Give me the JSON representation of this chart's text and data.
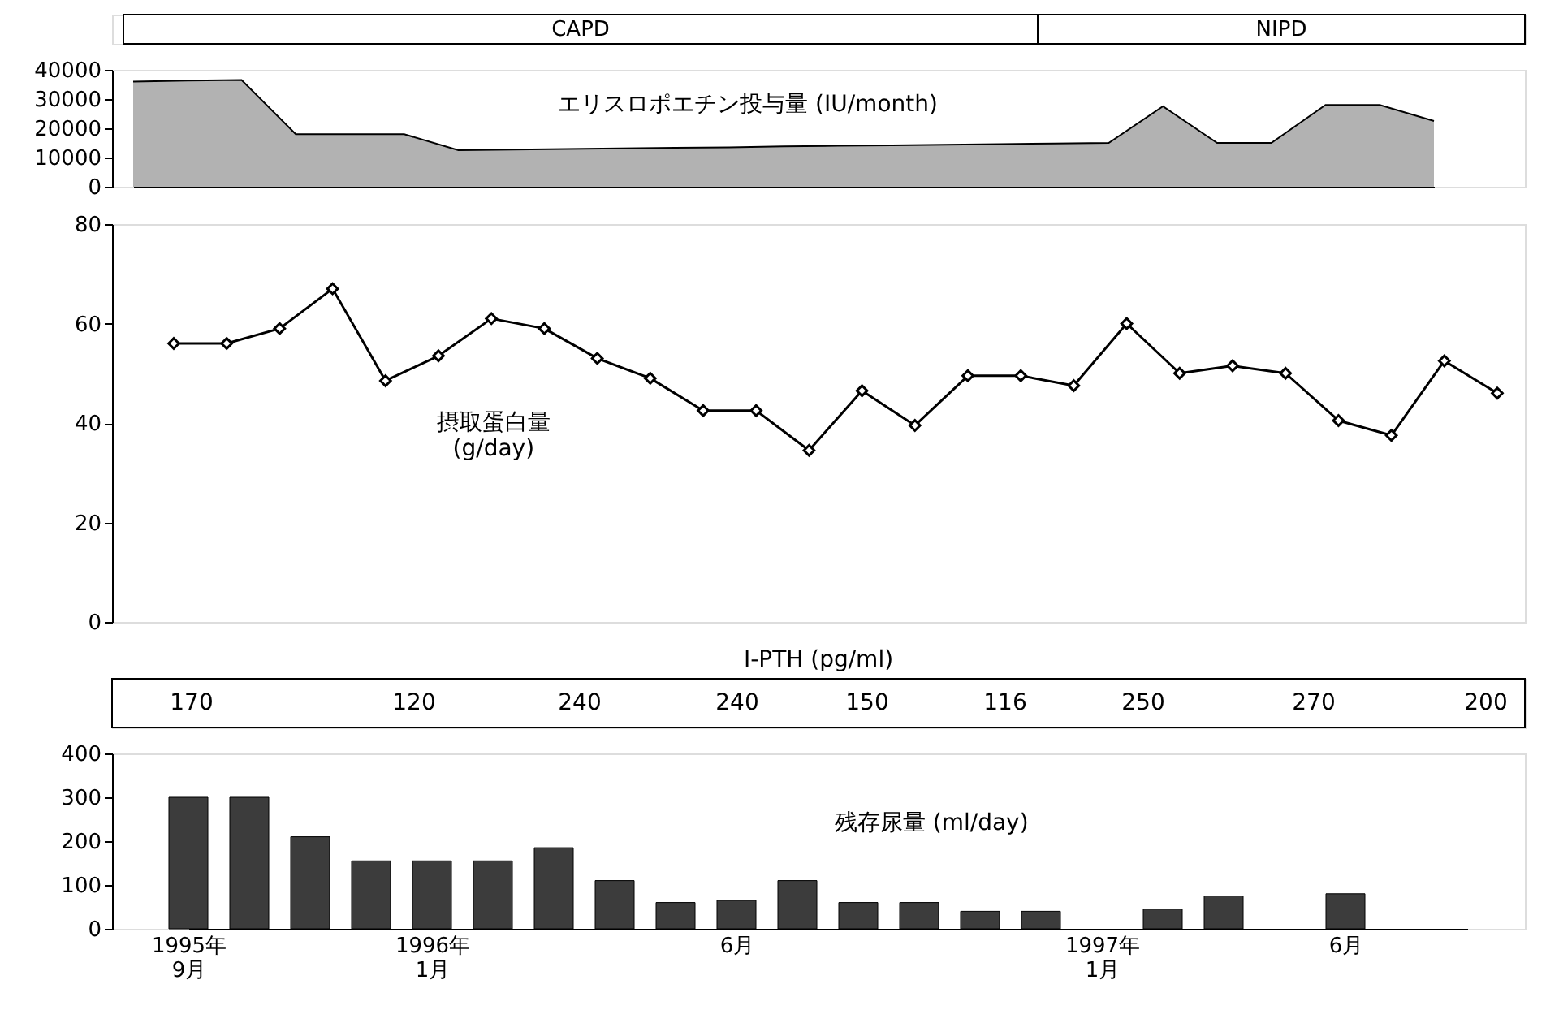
{
  "chart_data": [
    {
      "type": "other",
      "annotations": [
        "CAPD",
        "NIPD"
      ]
    },
    {
      "type": "area",
      "categories": [
        null,
        null,
        null,
        null,
        null,
        null,
        null,
        null,
        null,
        null,
        null,
        null,
        null,
        null,
        null,
        null,
        null,
        null,
        null,
        null,
        null,
        null,
        null,
        null,
        null
      ],
      "values": [
        36000,
        36300,
        36500,
        18000,
        18000,
        18000,
        12500,
        12700,
        12900,
        13100,
        13300,
        13500,
        13800,
        14000,
        14200,
        14400,
        14600,
        14800,
        15000,
        27500,
        15000,
        15000,
        28000,
        28000,
        22500
      ],
      "color": "#555555",
      "ylim": [
        0,
        40000
      ],
      "yticks": [
        0,
        10000,
        20000,
        30000,
        40000
      ],
      "tick_labels": "y",
      "annotations": [
        "エリスロポエチン投与量 (IU/month)"
      ]
    },
    {
      "type": "line",
      "categories": [
        null,
        null,
        null,
        null,
        null,
        null,
        null,
        null,
        null,
        null,
        null,
        null,
        null,
        null,
        null,
        null,
        null,
        null,
        null,
        null,
        null,
        null,
        null,
        null,
        null,
        null
      ],
      "values": [
        56,
        56,
        59,
        67,
        48.5,
        53.5,
        61,
        59,
        53,
        49,
        42.5,
        42.5,
        34.5,
        46.5,
        39.5,
        49.5,
        49.5,
        47.5,
        60,
        50,
        51.5,
        50,
        40.5,
        37.5,
        52.5,
        46
      ],
      "color": "#000000",
      "marker": "diamond",
      "line_style": "solid",
      "ylim": [
        0,
        80
      ],
      "yticks": [
        0,
        20,
        40,
        60,
        80
      ],
      "tick_labels": "y",
      "annotations": [
        "摂取蛋白量\n(g/day)"
      ]
    },
    {
      "type": "other",
      "title": "I-PTH (pg/ml)",
      "annotations": [
        "170",
        "120",
        "240",
        "240",
        "150",
        "116",
        "250",
        "270",
        "200"
      ]
    },
    {
      "type": "bar",
      "categories": [
        "1995年\n9月",
        null,
        null,
        null,
        "1996年\n1月",
        null,
        null,
        null,
        null,
        "6月",
        null,
        null,
        null,
        null,
        null,
        "1997年\n1月",
        null,
        null,
        null,
        "6月",
        null,
        null
      ],
      "values": [
        300,
        300,
        210,
        155,
        155,
        155,
        185,
        110,
        60,
        65,
        110,
        60,
        60,
        40,
        40,
        null,
        45,
        75,
        null,
        80,
        null,
        null
      ],
      "color": "#3c3c3c",
      "ylim": [
        0,
        400
      ],
      "yticks": [
        0,
        100,
        200,
        300,
        400
      ],
      "annotations": [
        "残存尿量 (ml/day)"
      ]
    }
  ]
}
